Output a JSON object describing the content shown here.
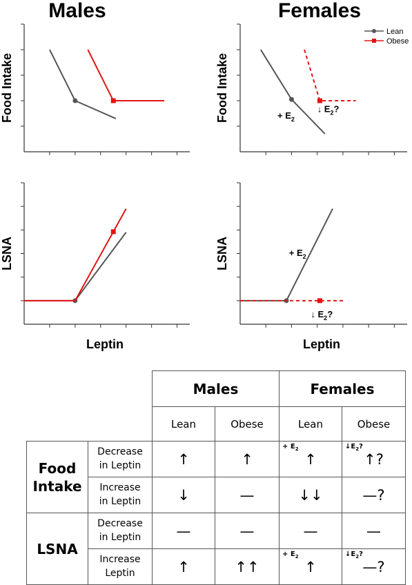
{
  "chart_data": [
    {
      "panel": "males-food-intake",
      "type": "line",
      "title": "Males",
      "xlabel": "",
      "ylabel": "Food Intake",
      "xlim": [
        0,
        6.5
      ],
      "ylim": [
        0,
        5
      ],
      "series": [
        {
          "name": "Lean",
          "color": "#555555",
          "dashed": false,
          "marker_x": 2,
          "x": [
            1,
            2,
            3.6
          ],
          "y": [
            4,
            2,
            1.3
          ]
        },
        {
          "name": "Obese",
          "color": "#e31414",
          "dashed": false,
          "marker_x": 3.5,
          "x": [
            2.5,
            3.5,
            5.5
          ],
          "y": [
            4,
            2,
            2
          ]
        }
      ],
      "annotations": []
    },
    {
      "panel": "females-food-intake",
      "type": "line",
      "title": "Females",
      "xlabel": "",
      "ylabel": "Food Intake",
      "xlim": [
        0,
        6.5
      ],
      "ylim": [
        0,
        5
      ],
      "legend": {
        "position": "top-right",
        "entries": [
          "Lean",
          "Obese"
        ]
      },
      "series": [
        {
          "name": "Lean",
          "color": "#555555",
          "dashed": false,
          "marker_x": 2,
          "x": [
            0.8,
            2,
            3.3
          ],
          "y": [
            4,
            2.05,
            0.7
          ]
        },
        {
          "name": "Obese",
          "color": "#e31414",
          "dashed": true,
          "marker_x": 3.1,
          "x": [
            2.5,
            3.1,
            4.5
          ],
          "y": [
            4,
            2,
            2
          ]
        }
      ],
      "annotations": [
        {
          "label": "+ E",
          "sub": "2",
          "suffix": "",
          "x": 1.45,
          "y": 1.3
        },
        {
          "label": "↓ E",
          "sub": "2",
          "suffix": "?",
          "x": 3.0,
          "y": 1.55
        }
      ]
    },
    {
      "panel": "males-lsna",
      "type": "line",
      "title": "",
      "xlabel": "Leptin",
      "ylabel": "LSNA",
      "xlim": [
        0,
        6.5
      ],
      "ylim": [
        0,
        6
      ],
      "series": [
        {
          "name": "Lean",
          "color": "#555555",
          "dashed": false,
          "marker_x": 2,
          "x": [
            0,
            2,
            4
          ],
          "y": [
            1,
            1,
            3.9
          ]
        },
        {
          "name": "Obese",
          "color": "#e31414",
          "dashed": false,
          "marker_x": 3.5,
          "x": [
            0,
            2,
            4
          ],
          "y": [
            1,
            1,
            4.9
          ]
        }
      ],
      "annotations": []
    },
    {
      "panel": "females-lsna",
      "type": "line",
      "title": "",
      "xlabel": "Leptin",
      "ylabel": "LSNA",
      "xlim": [
        0,
        6.5
      ],
      "ylim": [
        0,
        6
      ],
      "series": [
        {
          "name": "Lean",
          "color": "#555555",
          "dashed": false,
          "marker_x": 1.8,
          "x": [
            0,
            1.8,
            3.6
          ],
          "y": [
            1,
            1,
            4.9
          ]
        },
        {
          "name": "Obese",
          "color": "#e31414",
          "dashed": true,
          "marker_x": 3.1,
          "x": [
            0,
            1.6,
            4.1
          ],
          "y": [
            1,
            1,
            1
          ]
        }
      ],
      "annotations": [
        {
          "label": "+ E",
          "sub": "2",
          "suffix": "",
          "x": 1.9,
          "y": 2.9
        },
        {
          "label": "↓ E",
          "sub": "2",
          "suffix": "?",
          "x": 2.75,
          "y": 0.3
        }
      ]
    }
  ],
  "table": {
    "group_headers": [
      "Males",
      "Females"
    ],
    "sub_headers": [
      "Lean",
      "Obese",
      "Lean",
      "Obese"
    ],
    "sections": [
      {
        "name_line1": "Food",
        "name_line2": "Intake",
        "rows": [
          {
            "cond_line1": "Decrease",
            "cond_line2": "in Leptin",
            "cells": [
              "↑",
              "↑",
              "↑",
              "↑?"
            ],
            "notes": [
              "",
              "",
              "+ E",
              "↓E"
            ],
            "note_suffix": [
              "",
              "",
              "",
              "?"
            ]
          },
          {
            "cond_line1": "Increase",
            "cond_line2": "in Leptin",
            "cells": [
              "↓",
              "—",
              "↓↓",
              "—?"
            ],
            "notes": [
              "",
              "",
              "",
              ""
            ],
            "note_suffix": [
              "",
              "",
              "",
              ""
            ]
          }
        ]
      },
      {
        "name_line1": "LSNA",
        "name_line2": "",
        "rows": [
          {
            "cond_line1": "Decrease",
            "cond_line2": "in Leptin",
            "cells": [
              "—",
              "—",
              "—",
              "—"
            ],
            "notes": [
              "",
              "",
              "",
              ""
            ],
            "note_suffix": [
              "",
              "",
              "",
              ""
            ]
          },
          {
            "cond_line1": "Increase",
            "cond_line2": "Leptin",
            "cells": [
              "↑",
              "↑↑",
              "↑",
              "—?"
            ],
            "notes": [
              "",
              "",
              "+ E",
              "↓E"
            ],
            "note_suffix": [
              "",
              "",
              "",
              "?"
            ]
          }
        ]
      }
    ],
    "note_sub": "2"
  }
}
